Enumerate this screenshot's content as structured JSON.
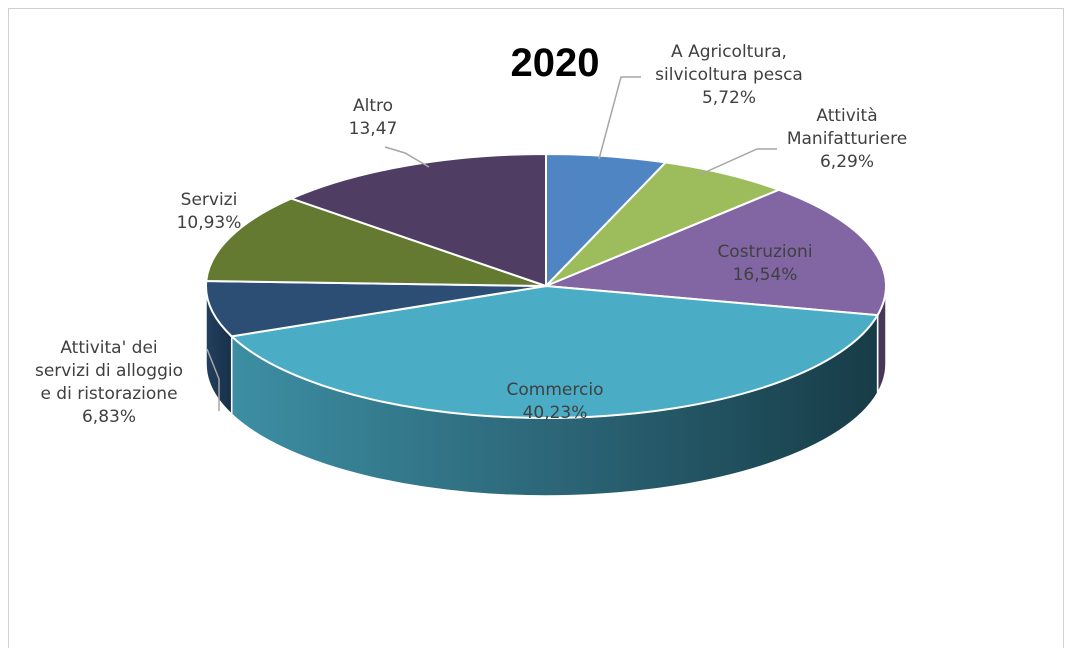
{
  "chart_data": {
    "type": "pie",
    "style": "3d-exploded-pie",
    "title": "2020",
    "legend": "none",
    "slices": [
      {
        "label": [
          "A Agricoltura,",
          "silvicoltura pesca"
        ],
        "value_text": "5,72%",
        "value": 5.72,
        "color": "#5085c3"
      },
      {
        "label": [
          "Attività",
          "Manifatturiere"
        ],
        "value_text": "6,29%",
        "value": 6.29,
        "color": "#9dbd5c"
      },
      {
        "label": [
          "Costruzioni"
        ],
        "value_text": "16,54%",
        "value": 16.54,
        "color": "#8166a3"
      },
      {
        "label": [
          "Commercio"
        ],
        "value_text": "40,23%",
        "value": 40.23,
        "color": "#4bacc6"
      },
      {
        "label": [
          "Attivita' dei",
          "servizi di alloggio",
          "e di ristorazione"
        ],
        "value_text": "6,83%",
        "value": 6.83,
        "color": "#2c4e74"
      },
      {
        "label": [
          "Servizi"
        ],
        "value_text": "10,93%",
        "value": 10.93,
        "color": "#647a30"
      },
      {
        "label": [
          "Altro"
        ],
        "value_text": "13,47",
        "value": 13.47,
        "color": "#4f3d64"
      }
    ]
  }
}
